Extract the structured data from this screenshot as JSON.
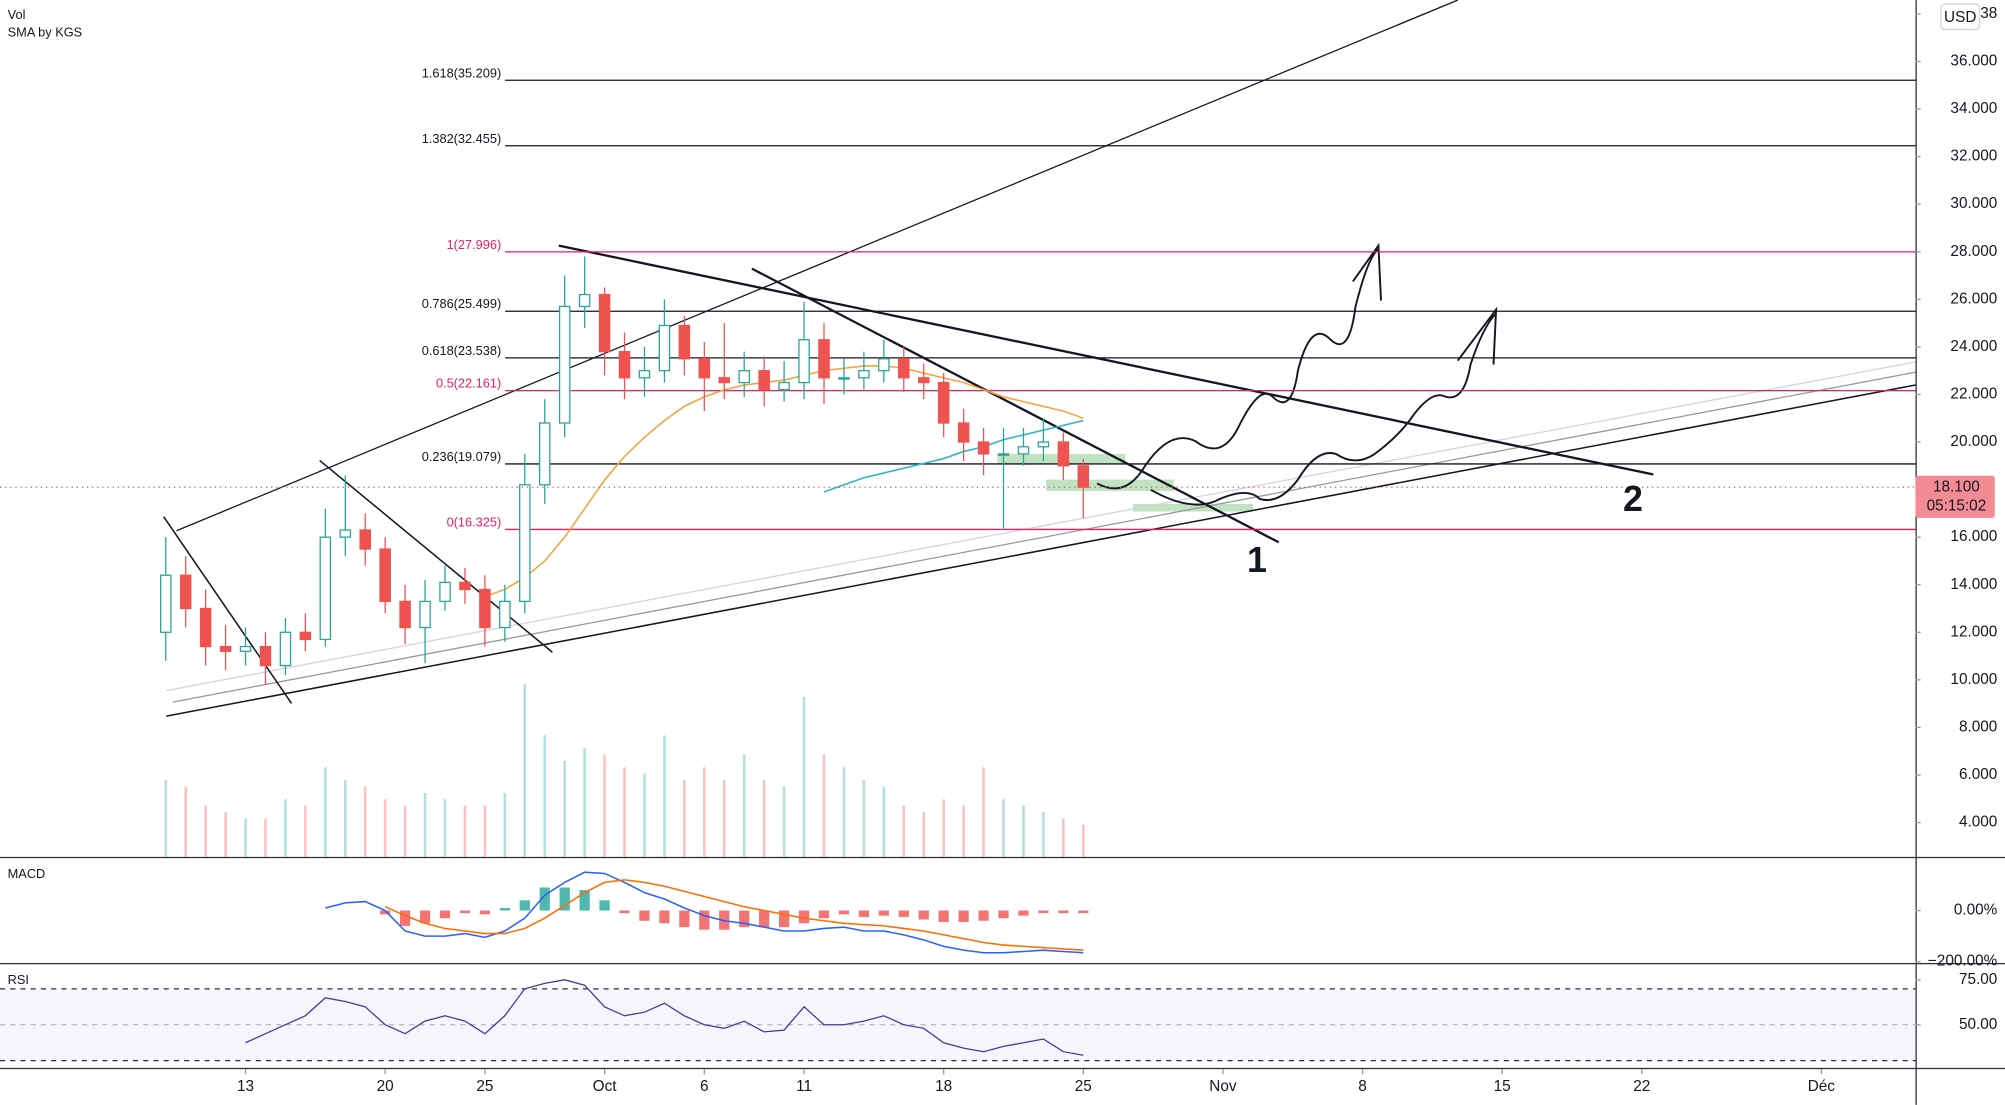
{
  "chart_data": [
    {
      "type": "candlestick",
      "legend": [
        "Vol",
        "SMA by KGS"
      ],
      "currency": "USD",
      "x": [
        8,
        9,
        10,
        11,
        12,
        13,
        14,
        15,
        16,
        17,
        18,
        19,
        20,
        21,
        22,
        23,
        24,
        25,
        26,
        27,
        28,
        29,
        30,
        31,
        32,
        33,
        34,
        35,
        36,
        37,
        38,
        39,
        40,
        41,
        42,
        43,
        44,
        45,
        46,
        47,
        48,
        49,
        50,
        51,
        52,
        53,
        54
      ],
      "open": [
        12.0,
        14.4,
        13.0,
        11.4,
        11.2,
        11.4,
        10.6,
        12.0,
        11.7,
        16.0,
        16.3,
        15.5,
        13.3,
        12.2,
        13.3,
        14.1,
        13.8,
        12.2,
        13.3,
        18.2,
        20.8,
        25.7,
        26.2,
        23.8,
        22.7,
        23.0,
        24.9,
        23.5,
        22.7,
        22.5,
        23.0,
        22.2,
        22.5,
        24.3,
        22.7,
        22.7,
        23.0,
        23.5,
        22.7,
        22.5,
        20.8,
        20.0,
        19.5,
        19.5,
        19.8,
        20.0,
        19.0
      ],
      "high": [
        16.0,
        15.2,
        13.8,
        12.3,
        12.2,
        12.0,
        12.6,
        12.8,
        17.2,
        18.6,
        17.0,
        16.0,
        14.0,
        14.2,
        14.8,
        14.7,
        14.4,
        14.0,
        19.5,
        21.8,
        27.0,
        27.8,
        26.5,
        24.6,
        24.0,
        26.0,
        25.3,
        24.2,
        25.0,
        23.8,
        23.6,
        23.4,
        25.9,
        25.0,
        23.5,
        23.8,
        24.3,
        24.0,
        23.3,
        22.9,
        21.4,
        20.6,
        20.6,
        20.6,
        21.0,
        20.4,
        19.3
      ],
      "low": [
        10.8,
        12.2,
        10.6,
        10.4,
        10.6,
        9.8,
        10.2,
        11.2,
        11.4,
        15.2,
        14.8,
        12.8,
        11.5,
        10.7,
        12.9,
        13.2,
        11.4,
        11.6,
        12.8,
        17.4,
        20.2,
        24.8,
        22.8,
        21.8,
        21.9,
        22.5,
        22.8,
        21.3,
        21.8,
        21.9,
        21.5,
        21.7,
        21.8,
        21.6,
        22.0,
        22.2,
        22.5,
        22.1,
        21.8,
        20.2,
        19.2,
        18.6,
        16.3,
        19.0,
        19.2,
        18.4,
        16.8
      ],
      "close": [
        14.4,
        13.0,
        11.4,
        11.2,
        11.4,
        10.6,
        12.0,
        11.7,
        16.0,
        16.3,
        15.5,
        13.3,
        12.2,
        13.3,
        14.1,
        13.8,
        12.2,
        13.3,
        18.2,
        20.8,
        25.7,
        26.2,
        23.8,
        22.7,
        23.0,
        24.9,
        23.5,
        22.7,
        22.5,
        23.0,
        22.2,
        22.5,
        24.3,
        22.7,
        22.7,
        23.0,
        23.5,
        22.7,
        22.5,
        20.8,
        20.0,
        19.5,
        19.5,
        19.8,
        20.0,
        19.0,
        18.1
      ],
      "volume": [
        60,
        55,
        40,
        35,
        30,
        30,
        45,
        40,
        70,
        60,
        55,
        45,
        40,
        50,
        45,
        40,
        40,
        50,
        135,
        95,
        75,
        85,
        80,
        70,
        65,
        95,
        60,
        70,
        60,
        80,
        60,
        55,
        125,
        80,
        70,
        60,
        55,
        40,
        35,
        45,
        40,
        70,
        45,
        40,
        35,
        30,
        25
      ],
      "volume_ylim": [
        0,
        670
      ],
      "lines": [
        {
          "color": "#f7a13a",
          "values": [
            null,
            null,
            null,
            null,
            null,
            null,
            null,
            null,
            null,
            null,
            null,
            null,
            null,
            null,
            null,
            null,
            13.5,
            13.8,
            14.3,
            15.0,
            16.0,
            17.2,
            18.4,
            19.4,
            20.2,
            20.9,
            21.5,
            21.9,
            22.2,
            22.4,
            22.5,
            22.6,
            22.8,
            23.0,
            23.1,
            23.2,
            23.2,
            23.1,
            22.9,
            22.7,
            22.5,
            22.2,
            21.9,
            21.7,
            21.5,
            21.3,
            21.0
          ]
        },
        {
          "color": "#26b5c9",
          "values": [
            null,
            null,
            null,
            null,
            null,
            null,
            null,
            null,
            null,
            null,
            null,
            null,
            null,
            null,
            null,
            null,
            null,
            null,
            null,
            null,
            null,
            null,
            null,
            null,
            null,
            null,
            null,
            null,
            null,
            null,
            null,
            null,
            null,
            17.9,
            18.2,
            18.5,
            18.7,
            18.9,
            19.1,
            19.3,
            19.6,
            19.8,
            20.1,
            20.3,
            20.5,
            20.7,
            20.9
          ]
        }
      ],
      "levels": [
        {
          "label": "1.618(35.209)",
          "value": 35.209,
          "color": "#131722"
        },
        {
          "label": "1.382(32.455)",
          "value": 32.455,
          "color": "#131722"
        },
        {
          "label": "1(27.996)",
          "value": 27.996,
          "color": "#e91e63"
        },
        {
          "label": "0.786(25.499)",
          "value": 25.499,
          "color": "#131722"
        },
        {
          "label": "0.618(23.538)",
          "value": 23.538,
          "color": "#131722"
        },
        {
          "label": "0.5(22.161)",
          "value": 22.161,
          "color": "#e91e63"
        },
        {
          "label": "0.236(19.079)",
          "value": 19.079,
          "color": "#131722"
        },
        {
          "label": "0(16.325)",
          "value": 16.325,
          "color": "#e91e63"
        }
      ],
      "annotations": [
        "1",
        "2"
      ],
      "last_price": {
        "value": 18.1,
        "label": "18.100"
      },
      "countdown": "05:15:02",
      "xlim": [
        -0.31,
        95.72
      ],
      "xticks": [
        {
          "value": 12,
          "label": "13"
        },
        {
          "value": 19,
          "label": "20"
        },
        {
          "value": 24,
          "label": "25"
        },
        {
          "value": 30,
          "label": "Oct"
        },
        {
          "value": 35,
          "label": "6"
        },
        {
          "value": 40,
          "label": "11"
        },
        {
          "value": 47,
          "label": "18"
        },
        {
          "value": 54,
          "label": "25"
        },
        {
          "value": 61,
          "label": "Nov"
        },
        {
          "value": 68,
          "label": "8"
        },
        {
          "value": 75,
          "label": "15"
        },
        {
          "value": 82,
          "label": "22"
        },
        {
          "value": 91,
          "label": "Déc"
        }
      ],
      "ylim": [
        2.56,
        38.58
      ],
      "yticks": [
        {
          "value": 4,
          "label": "4.000"
        },
        {
          "value": 6,
          "label": "6.000"
        },
        {
          "value": 8,
          "label": "8.000"
        },
        {
          "value": 10,
          "label": "10.000"
        },
        {
          "value": 12,
          "label": "12.000"
        },
        {
          "value": 14,
          "label": "14.000"
        },
        {
          "value": 16,
          "label": "16.000"
        },
        {
          "value": 20,
          "label": "20.000"
        },
        {
          "value": 22,
          "label": "22.000"
        },
        {
          "value": 24,
          "label": "24.000"
        },
        {
          "value": 26,
          "label": "26.000"
        },
        {
          "value": 28,
          "label": "28.000"
        },
        {
          "value": 30,
          "label": "30.000"
        },
        {
          "value": 32,
          "label": "32.000"
        },
        {
          "value": 34,
          "label": "34.000"
        },
        {
          "value": 36,
          "label": "36.000"
        },
        {
          "value": 38,
          "label": "38"
        }
      ]
    },
    {
      "type": "macd",
      "title": "MACD",
      "macd": [
        null,
        null,
        null,
        null,
        null,
        null,
        null,
        null,
        10,
        30,
        35,
        0,
        -80,
        -100,
        -100,
        -90,
        -105,
        -80,
        -30,
        60,
        110,
        150,
        145,
        110,
        70,
        45,
        10,
        -20,
        -40,
        -50,
        -65,
        -80,
        -80,
        -70,
        -65,
        -80,
        -80,
        -95,
        -115,
        -140,
        -155,
        -165,
        -165,
        -160,
        -155,
        -160,
        -165
      ],
      "signal": [
        null,
        null,
        null,
        null,
        null,
        null,
        null,
        null,
        null,
        null,
        null,
        15,
        -20,
        -50,
        -70,
        -80,
        -90,
        -90,
        -70,
        -30,
        20,
        70,
        110,
        120,
        110,
        95,
        75,
        55,
        35,
        15,
        0,
        -15,
        -30,
        -40,
        -50,
        -55,
        -60,
        -70,
        -80,
        -95,
        -110,
        -125,
        -135,
        -140,
        -145,
        -150,
        -155
      ],
      "hist": [
        null,
        null,
        null,
        null,
        null,
        null,
        null,
        null,
        null,
        null,
        null,
        -15,
        -60,
        -50,
        -30,
        -10,
        -15,
        10,
        40,
        90,
        90,
        80,
        40,
        -10,
        -40,
        -50,
        -65,
        -75,
        -75,
        -65,
        -65,
        -65,
        -50,
        -30,
        -15,
        -25,
        -20,
        -25,
        -35,
        -45,
        -45,
        -40,
        -30,
        -20,
        -10,
        -10,
        -10
      ],
      "ylim": [
        -200,
        200
      ],
      "yticks": [
        {
          "value": 0,
          "label": "0.00%"
        },
        {
          "value": -200,
          "label": "−200.00%"
        }
      ]
    },
    {
      "type": "rsi",
      "title": "RSI",
      "values": [
        null,
        null,
        null,
        null,
        40,
        45,
        50,
        55,
        65,
        63,
        60,
        50,
        45,
        52,
        55,
        52,
        45,
        55,
        70,
        73,
        75,
        72,
        60,
        55,
        57,
        62,
        55,
        50,
        48,
        52,
        46,
        47,
        60,
        50,
        50,
        52,
        55,
        50,
        48,
        40,
        37,
        35,
        38,
        40,
        42,
        35,
        33
      ],
      "bands": [
        70,
        50,
        30
      ],
      "ylim": [
        26,
        83
      ],
      "yticks": [
        {
          "value": 75,
          "label": "75.00"
        },
        {
          "value": 50,
          "label": "50.00"
        }
      ]
    }
  ]
}
